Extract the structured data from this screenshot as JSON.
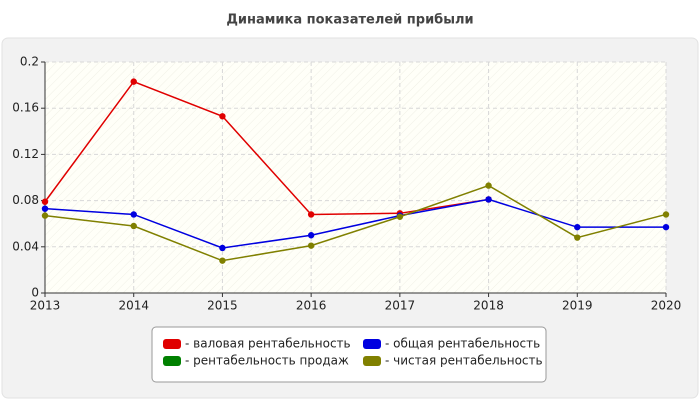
{
  "chart_data": {
    "type": "line",
    "title": "Динамика показателей прибыли",
    "categories": [
      "2013",
      "2014",
      "2015",
      "2016",
      "2017",
      "2018",
      "2019",
      "2020"
    ],
    "series": [
      {
        "name": "- валовая рентабельность",
        "color": "#e00000",
        "values": [
          0.079,
          0.183,
          0.153,
          0.068,
          0.069,
          0.081,
          null,
          null
        ]
      },
      {
        "name": "- общая рентабельность",
        "color": "#0000e0",
        "values": [
          0.073,
          0.068,
          0.039,
          0.05,
          0.067,
          0.081,
          0.057,
          0.057
        ]
      },
      {
        "name": "- рентабельность продаж",
        "color": "#008000",
        "values": [
          null,
          null,
          null,
          null,
          null,
          null,
          null,
          null
        ]
      },
      {
        "name": "- чистая рентабельность",
        "color": "#808000",
        "values": [
          0.067,
          0.058,
          0.028,
          0.041,
          0.066,
          0.093,
          0.048,
          0.068
        ]
      }
    ],
    "ylim": [
      0,
      0.2
    ],
    "yticks": [
      0,
      0.04,
      0.08,
      0.12,
      0.16,
      0.2
    ],
    "grid": true
  }
}
